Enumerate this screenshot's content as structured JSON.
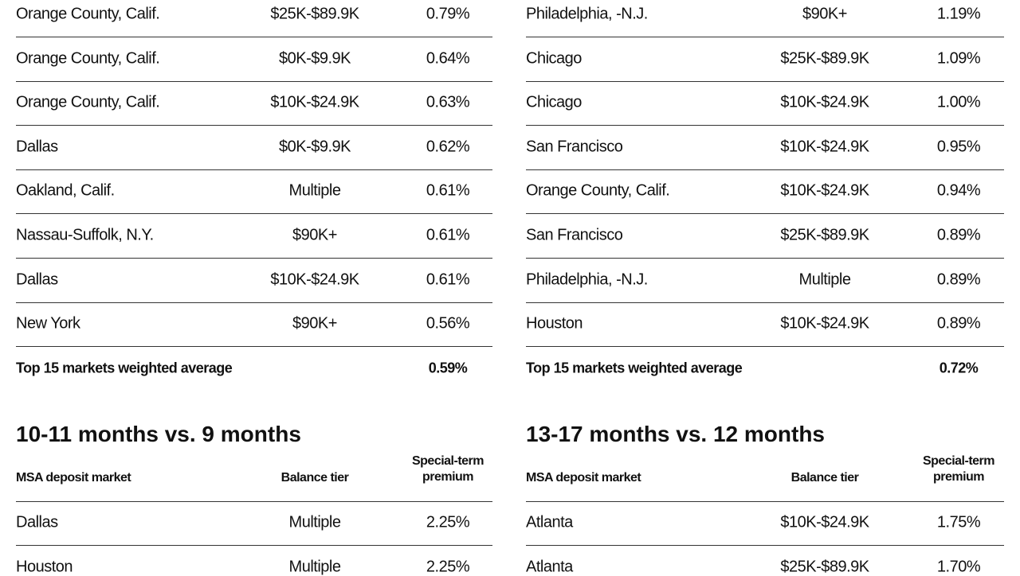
{
  "top_tables": [
    {
      "rows": [
        [
          "Orange County, Calif.",
          "$25K-$89.9K",
          "0.79%"
        ],
        [
          "Orange County, Calif.",
          "$0K-$9.9K",
          "0.64%"
        ],
        [
          "Orange County, Calif.",
          "$10K-$24.9K",
          "0.63%"
        ],
        [
          "Dallas",
          "$0K-$9.9K",
          "0.62%"
        ],
        [
          "Oakland, Calif.",
          "Multiple",
          "0.61%"
        ],
        [
          "Nassau-Suffolk, N.Y.",
          "$90K+",
          "0.61%"
        ],
        [
          "Dallas",
          "$10K-$24.9K",
          "0.61%"
        ],
        [
          "New York",
          "$90K+",
          "0.56%"
        ]
      ],
      "total": {
        "label": "Top 15 markets weighted average",
        "value": "0.59%"
      }
    },
    {
      "rows": [
        [
          "Philadelphia, -N.J.",
          "$90K+",
          "1.19%"
        ],
        [
          "Chicago",
          "$25K-$89.9K",
          "1.09%"
        ],
        [
          "Chicago",
          "$10K-$24.9K",
          "1.00%"
        ],
        [
          "San Francisco",
          "$10K-$24.9K",
          "0.95%"
        ],
        [
          "Orange County, Calif.",
          "$10K-$24.9K",
          "0.94%"
        ],
        [
          "San Francisco",
          "$25K-$89.9K",
          "0.89%"
        ],
        [
          "Philadelphia, -N.J.",
          "Multiple",
          "0.89%"
        ],
        [
          "Houston",
          "$10K-$24.9K",
          "0.89%"
        ]
      ],
      "total": {
        "label": "Top 15 markets weighted average",
        "value": "0.72%"
      }
    }
  ],
  "bottom_tables": [
    {
      "title": "10-11 months vs. 9 months",
      "header": [
        "MSA deposit market",
        "Balance tier",
        "Special-term premium"
      ],
      "rows": [
        [
          "Dallas",
          "Multiple",
          "2.25%"
        ],
        [
          "Houston",
          "Multiple",
          "2.25%"
        ]
      ]
    },
    {
      "title": "13-17 months vs. 12 months",
      "header": [
        "MSA deposit market",
        "Balance tier",
        "Special-term premium"
      ],
      "rows": [
        [
          "Atlanta",
          "$10K-$24.9K",
          "1.75%"
        ],
        [
          "Atlanta",
          "$25K-$89.9K",
          "1.70%"
        ]
      ]
    }
  ]
}
